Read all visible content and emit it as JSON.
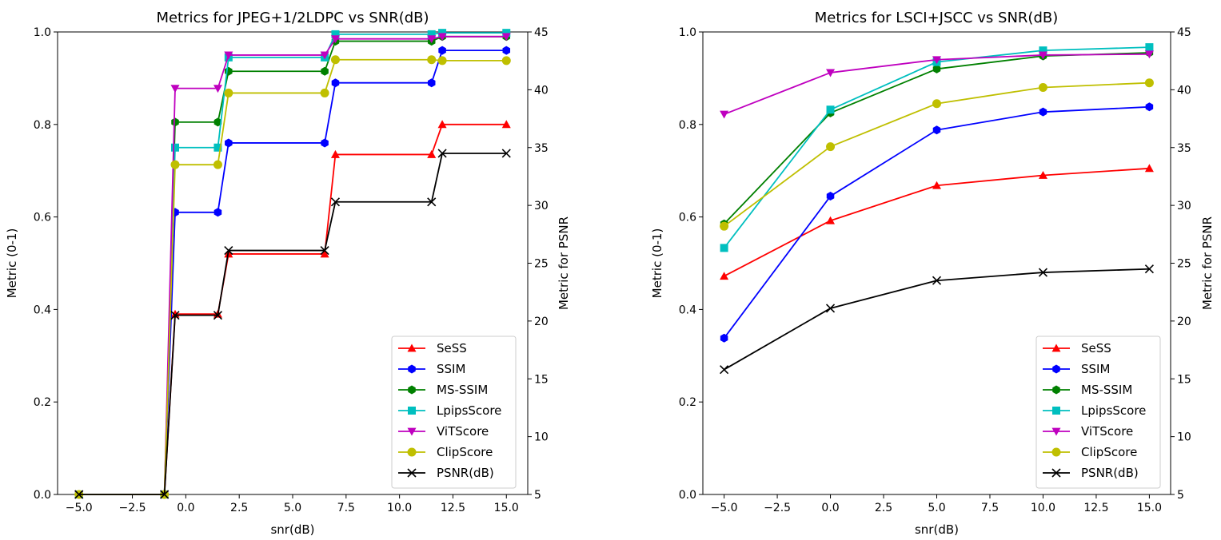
{
  "chart_data": [
    {
      "type": "line",
      "title": "Metrics for JPEG+1/2LDPC vs SNR(dB)",
      "xlabel": "snr(dB)",
      "ylabel": "Metric (0-1)",
      "y2label": "Metric for PSNR",
      "xlim": [
        -6.0,
        16.0
      ],
      "ylim": [
        0,
        1
      ],
      "y2lim": [
        5,
        45
      ],
      "xticks": [
        -5.0,
        -2.5,
        0.0,
        2.5,
        5.0,
        7.5,
        10.0,
        12.5,
        15.0
      ],
      "xtick_labels": [
        "−5.0",
        "−2.5",
        "0.0",
        "2.5",
        "5.0",
        "7.5",
        "10.0",
        "12.5",
        "15.0"
      ],
      "yticks": [
        0.0,
        0.2,
        0.4,
        0.6,
        0.8,
        1.0
      ],
      "ytick_labels": [
        "0.0",
        "0.2",
        "0.4",
        "0.6",
        "0.8",
        "1.0"
      ],
      "y2ticks": [
        5,
        10,
        15,
        20,
        25,
        30,
        35,
        40,
        45
      ],
      "y2tick_labels": [
        "5",
        "10",
        "15",
        "20",
        "25",
        "30",
        "35",
        "40",
        "45"
      ],
      "legend_position": "lower-right",
      "x": [
        -5,
        -1,
        -0.5,
        1.5,
        2,
        6.5,
        7,
        11.5,
        12,
        15
      ],
      "series": [
        {
          "name": "SeSS",
          "color": "#ff0000",
          "marker": "triangle-up",
          "axis": "left",
          "values": [
            0,
            0,
            0.39,
            0.39,
            0.52,
            0.52,
            0.735,
            0.735,
            0.8,
            0.8
          ]
        },
        {
          "name": "SSIM",
          "color": "#0000ff",
          "marker": "hexagon",
          "axis": "left",
          "values": [
            0,
            0,
            0.61,
            0.61,
            0.76,
            0.76,
            0.89,
            0.89,
            0.96,
            0.96
          ]
        },
        {
          "name": "MS-SSIM",
          "color": "#008000",
          "marker": "hexagon",
          "axis": "left",
          "values": [
            0,
            0,
            0.805,
            0.805,
            0.915,
            0.915,
            0.98,
            0.98,
            0.99,
            0.99
          ]
        },
        {
          "name": "LpipsScore",
          "color": "#00bfbf",
          "marker": "square",
          "axis": "left",
          "values": [
            0,
            0,
            0.75,
            0.75,
            0.945,
            0.945,
            0.995,
            0.995,
            0.998,
            0.998
          ]
        },
        {
          "name": "ViTScore",
          "color": "#bf00bf",
          "marker": "triangle-down",
          "axis": "left",
          "values": [
            0,
            0,
            0.878,
            0.878,
            0.95,
            0.95,
            0.985,
            0.985,
            0.99,
            0.99
          ]
        },
        {
          "name": "ClipScore",
          "color": "#bfbf00",
          "marker": "circle",
          "axis": "left",
          "values": [
            0,
            0,
            0.713,
            0.713,
            0.868,
            0.868,
            0.94,
            0.94,
            0.938,
            0.938
          ]
        },
        {
          "name": "PSNR(dB)",
          "color": "#000000",
          "marker": "x",
          "axis": "right",
          "values": [
            5,
            5,
            20.5,
            20.5,
            26.1,
            26.1,
            30.3,
            30.3,
            34.5,
            34.5
          ]
        }
      ]
    },
    {
      "type": "line",
      "title": "Metrics for LSCI+JSCC vs SNR(dB)",
      "xlabel": "snr(dB)",
      "ylabel": "Metric (0-1)",
      "y2label": "Metric for PSNR",
      "xlim": [
        -6.0,
        16.0
      ],
      "ylim": [
        0,
        1
      ],
      "y2lim": [
        5,
        45
      ],
      "xticks": [
        -5.0,
        -2.5,
        0.0,
        2.5,
        5.0,
        7.5,
        10.0,
        12.5,
        15.0
      ],
      "xtick_labels": [
        "−5.0",
        "−2.5",
        "0.0",
        "2.5",
        "5.0",
        "7.5",
        "10.0",
        "12.5",
        "15.0"
      ],
      "yticks": [
        0.0,
        0.2,
        0.4,
        0.6,
        0.8,
        1.0
      ],
      "ytick_labels": [
        "0.0",
        "0.2",
        "0.4",
        "0.6",
        "0.8",
        "1.0"
      ],
      "y2ticks": [
        5,
        10,
        15,
        20,
        25,
        30,
        35,
        40,
        45
      ],
      "y2tick_labels": [
        "5",
        "10",
        "15",
        "20",
        "25",
        "30",
        "35",
        "40",
        "45"
      ],
      "legend_position": "lower-right",
      "x": [
        -5,
        0,
        5,
        10,
        15
      ],
      "series": [
        {
          "name": "SeSS",
          "color": "#ff0000",
          "marker": "triangle-up",
          "axis": "left",
          "values": [
            0.472,
            0.592,
            0.668,
            0.69,
            0.705
          ]
        },
        {
          "name": "SSIM",
          "color": "#0000ff",
          "marker": "hexagon",
          "axis": "left",
          "values": [
            0.338,
            0.645,
            0.788,
            0.827,
            0.838
          ]
        },
        {
          "name": "MS-SSIM",
          "color": "#008000",
          "marker": "hexagon",
          "axis": "left",
          "values": [
            0.585,
            0.825,
            0.92,
            0.948,
            0.955
          ]
        },
        {
          "name": "LpipsScore",
          "color": "#00bfbf",
          "marker": "square",
          "axis": "left",
          "values": [
            0.533,
            0.832,
            0.935,
            0.96,
            0.967
          ]
        },
        {
          "name": "ViTScore",
          "color": "#bf00bf",
          "marker": "triangle-down",
          "axis": "left",
          "values": [
            0.822,
            0.912,
            0.94,
            0.95,
            0.952
          ]
        },
        {
          "name": "ClipScore",
          "color": "#bfbf00",
          "marker": "circle",
          "axis": "left",
          "values": [
            0.58,
            0.752,
            0.845,
            0.88,
            0.89
          ]
        },
        {
          "name": "PSNR(dB)",
          "color": "#000000",
          "marker": "x",
          "axis": "right",
          "values": [
            15.8,
            21.1,
            23.5,
            24.2,
            24.5
          ]
        }
      ]
    }
  ]
}
